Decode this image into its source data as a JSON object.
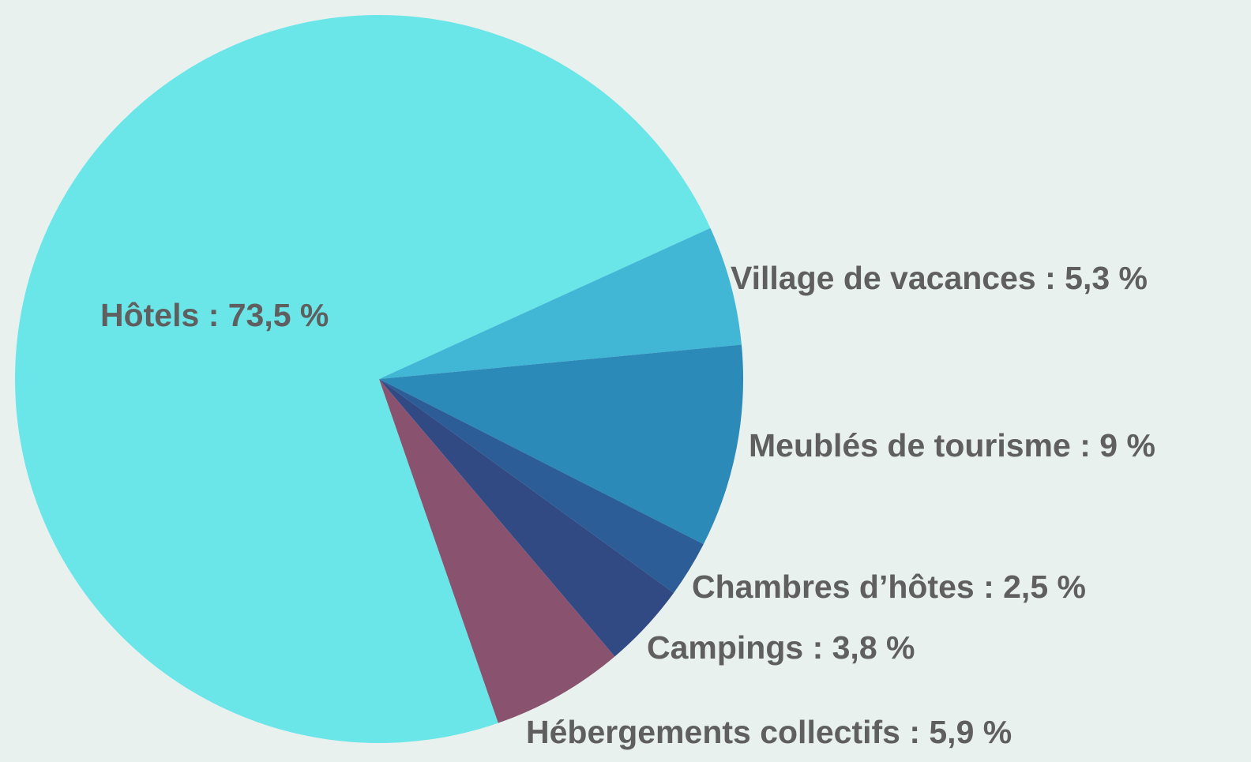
{
  "chart_data": {
    "type": "pie",
    "values": [
      73.5,
      5.3,
      9,
      2.5,
      3.8,
      5.9
    ],
    "value_labels": [
      "Hôtels : 73,5 %",
      "Village de vacances : 5,3 %",
      "Meublés de tourisme : 9 %",
      "Chambres d’hôtes : 2,5 %",
      "Campings : 3,8 %",
      "Hébergements collectifs : 5,9 %"
    ],
    "colors": [
      "#6ae5e8",
      "#42b6d5",
      "#2b8ab8",
      "#2c5d96",
      "#324a84",
      "#89526f"
    ]
  }
}
